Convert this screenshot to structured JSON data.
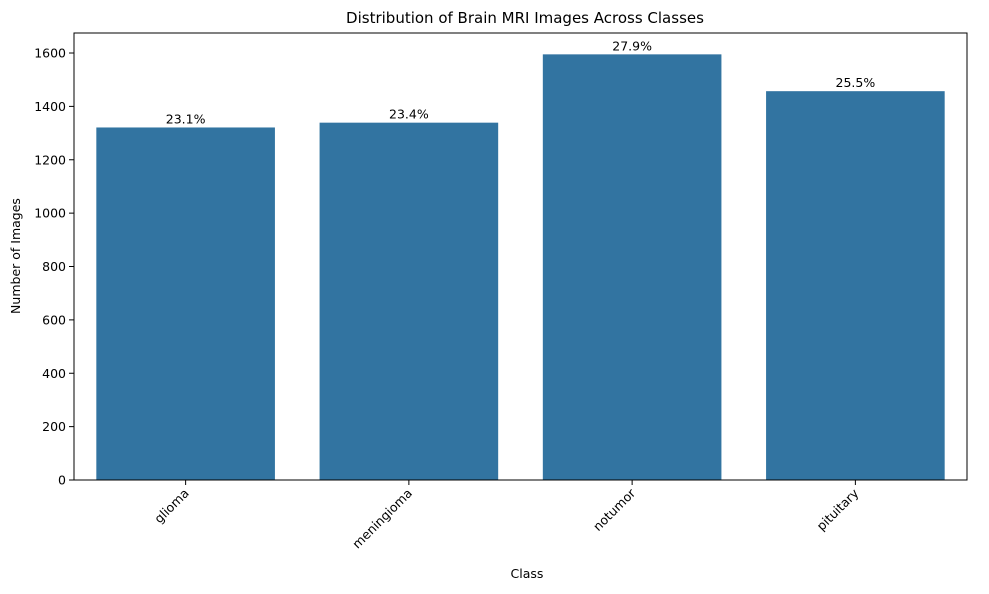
{
  "chart_data": {
    "type": "bar",
    "title": "Distribution of Brain MRI Images Across Classes",
    "xlabel": "Class",
    "ylabel": "Number of Images",
    "categories": [
      "glioma",
      "meningioma",
      "notumor",
      "pituitary"
    ],
    "values": [
      1321,
      1339,
      1595,
      1457
    ],
    "data_labels": [
      "23.1%",
      "23.4%",
      "27.9%",
      "25.5%"
    ],
    "ylim": [
      0,
      1675
    ],
    "yticks": [
      0,
      200,
      400,
      600,
      800,
      1000,
      1200,
      1400,
      1600
    ],
    "xtick_rotation_deg": 45,
    "grid": false,
    "legend": "none",
    "bar_color": "#3274a1"
  }
}
